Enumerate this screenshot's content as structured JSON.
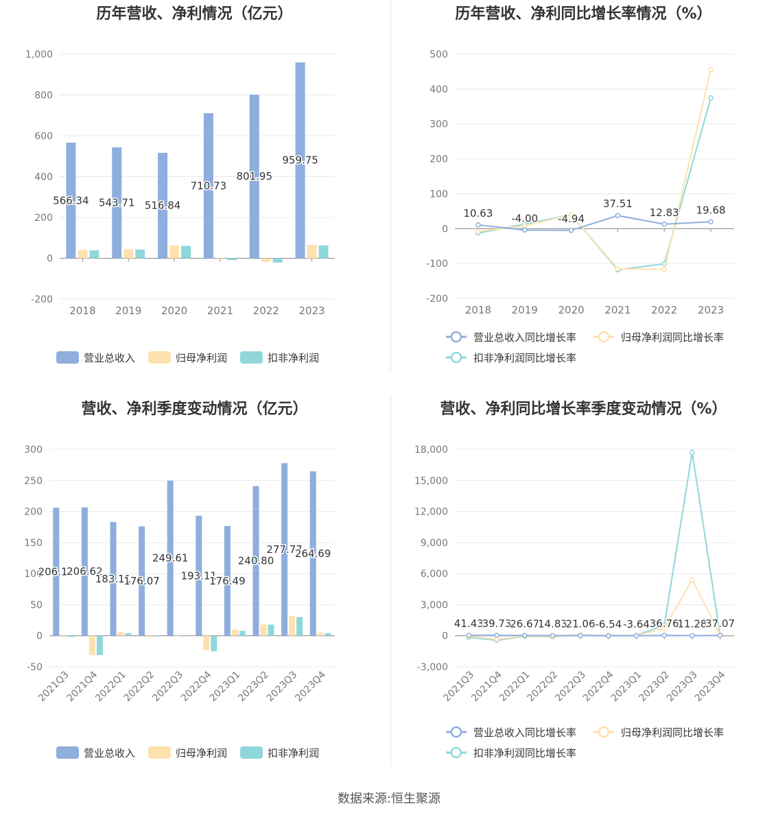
{
  "source": {
    "label": "数据来源:",
    "value": "恒生聚源"
  },
  "colors": {
    "revenue": "#8eaedd",
    "net_profit": "#fde1ae",
    "deducted_profit": "#8fd7da"
  },
  "chart_data": [
    {
      "id": "annual-values",
      "type": "bar",
      "title": "历年营收、净利情况（亿元）",
      "categories": [
        "2018",
        "2019",
        "2020",
        "2021",
        "2022",
        "2023"
      ],
      "ylim": [
        -200,
        1000
      ],
      "yticks": [
        -200,
        0,
        200,
        400,
        600,
        800,
        1000
      ],
      "ytick_labels": [
        "-200",
        "0",
        "200",
        "400",
        "600",
        "800",
        "1,000"
      ],
      "grid": true,
      "legend_position": "bottom",
      "series": [
        {
          "name": "营业总收入",
          "values": [
            566.34,
            543.71,
            516.84,
            710.73,
            801.95,
            959.75
          ],
          "labels": [
            "566.34",
            "543.71",
            "516.84",
            "710.73",
            "801.95",
            "959.75"
          ]
        },
        {
          "name": "归母净利润",
          "values": [
            40,
            44,
            63,
            -4,
            -16,
            66
          ]
        },
        {
          "name": "扣非净利润",
          "values": [
            39,
            43,
            61,
            -9,
            -21,
            63
          ]
        }
      ]
    },
    {
      "id": "annual-growth",
      "type": "line",
      "title": "历年营收、净利同比增长率情况（%）",
      "categories": [
        "2018",
        "2019",
        "2020",
        "2021",
        "2022",
        "2023"
      ],
      "ylim": [
        -200,
        500
      ],
      "yticks": [
        -200,
        -100,
        0,
        100,
        200,
        300,
        400,
        500
      ],
      "ytick_labels": [
        "-200",
        "-100",
        "0",
        "100",
        "200",
        "300",
        "400",
        "500"
      ],
      "grid": true,
      "legend_position": "bottom",
      "series": [
        {
          "name": "营业总收入同比增长率",
          "values": [
            10.63,
            -4.0,
            -4.94,
            37.51,
            12.83,
            19.68
          ],
          "labels": [
            "10.63",
            "-4.00",
            "-4.94",
            "37.51",
            "12.83",
            "19.68"
          ]
        },
        {
          "name": "归母净利润同比增长率",
          "values": [
            -8,
            8,
            40,
            -115,
            -117,
            456
          ]
        },
        {
          "name": "扣非净利润同比增长率",
          "values": [
            -13,
            13,
            40,
            -118,
            -101,
            375
          ]
        }
      ]
    },
    {
      "id": "quarterly-values",
      "type": "bar",
      "title": "营收、净利季度变动情况（亿元）",
      "categories": [
        "2021Q3",
        "2021Q4",
        "2022Q1",
        "2022Q2",
        "2022Q3",
        "2022Q4",
        "2023Q1",
        "2023Q2",
        "2023Q3",
        "2023Q4"
      ],
      "ylim": [
        -50,
        300
      ],
      "yticks": [
        -50,
        0,
        50,
        100,
        150,
        200,
        250,
        300
      ],
      "ytick_labels": [
        "-50",
        "0",
        "50",
        "100",
        "150",
        "200",
        "250",
        "300"
      ],
      "grid": true,
      "legend_position": "bottom",
      "series": [
        {
          "name": "营业总收入",
          "values": [
            206.12,
            206.62,
            183.11,
            176.07,
            249.61,
            193.11,
            176.49,
            240.8,
            277.77,
            264.69
          ],
          "labels": [
            "206.12",
            "206.62",
            "183.11",
            "176.07",
            "249.61",
            "193.11",
            "176.49",
            "240.80",
            "277.77",
            "264.69"
          ]
        },
        {
          "name": "归母净利润",
          "values": [
            -2,
            -31,
            6,
            -2,
            -1,
            -23,
            10,
            18,
            32,
            5
          ]
        },
        {
          "name": "扣非净利润",
          "values": [
            -2,
            -31,
            4,
            -1,
            0,
            -25,
            8,
            18,
            30,
            4
          ]
        }
      ]
    },
    {
      "id": "quarterly-growth",
      "type": "line",
      "title": "营收、净利同比增长率季度变动情况（%）",
      "categories": [
        "2021Q3",
        "2021Q4",
        "2022Q1",
        "2022Q2",
        "2022Q3",
        "2022Q4",
        "2023Q1",
        "2023Q2",
        "2023Q3",
        "2023Q4"
      ],
      "ylim": [
        -3000,
        18000
      ],
      "yticks": [
        -3000,
        0,
        3000,
        6000,
        9000,
        12000,
        15000,
        18000
      ],
      "ytick_labels": [
        "-3,000",
        "0",
        "3,000",
        "6,000",
        "9,000",
        "12,000",
        "15,000",
        "18,000"
      ],
      "grid": true,
      "legend_position": "bottom",
      "series": [
        {
          "name": "营业总收入同比增长率",
          "values": [
            41.43,
            39.73,
            26.67,
            14.83,
            21.06,
            -6.54,
            -3.64,
            36.76,
            11.28,
            37.07
          ],
          "labels": [
            "41.43",
            "39.73",
            "26.67",
            "14.83",
            "21.06",
            "-6.54",
            "-3.64",
            "36.76",
            "11.28",
            "37.07"
          ]
        },
        {
          "name": "归母净利润同比增长率",
          "values": [
            -50,
            -350,
            -30,
            -80,
            60,
            20,
            30,
            700,
            5400,
            100
          ]
        },
        {
          "name": "扣非净利润同比增长率",
          "values": [
            -150,
            -450,
            -60,
            -100,
            80,
            30,
            50,
            1000,
            17700,
            50
          ]
        }
      ]
    }
  ]
}
